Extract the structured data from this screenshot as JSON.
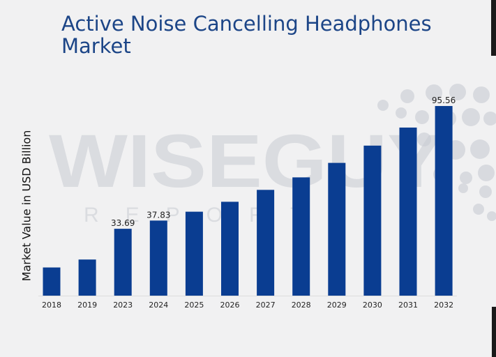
{
  "chart_data": {
    "type": "bar",
    "title": "Active Noise Cancelling Headphones Market",
    "xlabel": "",
    "ylabel": "Market Value in USD Billion",
    "categories": [
      "2018",
      "2019",
      "2023",
      "2024",
      "2025",
      "2026",
      "2027",
      "2028",
      "2029",
      "2030",
      "2031",
      "2032"
    ],
    "values": [
      14.2,
      18.2,
      33.69,
      37.83,
      42.3,
      47.3,
      53.3,
      59.6,
      66.9,
      75.6,
      84.7,
      95.56
    ],
    "data_labels": [
      "",
      "",
      "33.69",
      "37.83",
      "",
      "",
      "",
      "",
      "",
      "",
      "",
      "95.56"
    ],
    "ylim": [
      0,
      100
    ],
    "grid": false,
    "bar_color": "#0a3d91"
  },
  "watermark": {
    "line1": "WISEGUY",
    "line2": "REPORTS"
  }
}
